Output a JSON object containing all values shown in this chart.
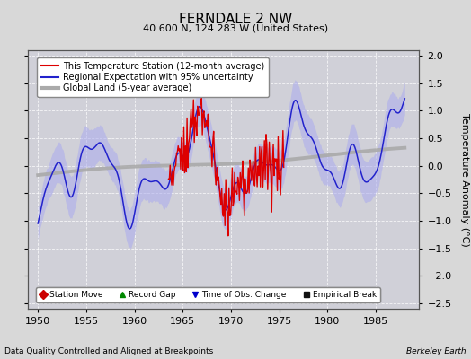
{
  "title": "FERNDALE 2 NW",
  "subtitle": "40.600 N, 124.283 W (United States)",
  "ylabel": "Temperature Anomaly (°C)",
  "xlabel_left": "Data Quality Controlled and Aligned at Breakpoints",
  "xlabel_right": "Berkeley Earth",
  "xlim": [
    1949.0,
    1989.5
  ],
  "ylim": [
    -2.6,
    2.1
  ],
  "yticks": [
    -2.5,
    -2.0,
    -1.5,
    -1.0,
    -0.5,
    0.0,
    0.5,
    1.0,
    1.5,
    2.0
  ],
  "xticks": [
    1950,
    1955,
    1960,
    1965,
    1970,
    1975,
    1980,
    1985
  ],
  "bg_color": "#d8d8d8",
  "plot_bg_color": "#d0d0d8",
  "uncertainty_color": "#aaaaee",
  "regional_color": "#2222cc",
  "station_color": "#dd0000",
  "global_color": "#aaaaaa",
  "legend_line_items": [
    {
      "label": "This Temperature Station (12-month average)",
      "color": "#dd0000",
      "lw": 1.5
    },
    {
      "label": "Regional Expectation with 95% uncertainty",
      "color": "#2222cc",
      "lw": 1.5
    },
    {
      "label": "Global Land (5-year average)",
      "color": "#aaaaaa",
      "lw": 3.0
    }
  ],
  "legend_marker_items": [
    {
      "label": "Station Move",
      "marker": "D",
      "color": "#cc0000"
    },
    {
      "label": "Record Gap",
      "marker": "^",
      "color": "#008800"
    },
    {
      "label": "Time of Obs. Change",
      "marker": "v",
      "color": "#0000cc"
    },
    {
      "label": "Empirical Break",
      "marker": "s",
      "color": "#111111"
    }
  ]
}
